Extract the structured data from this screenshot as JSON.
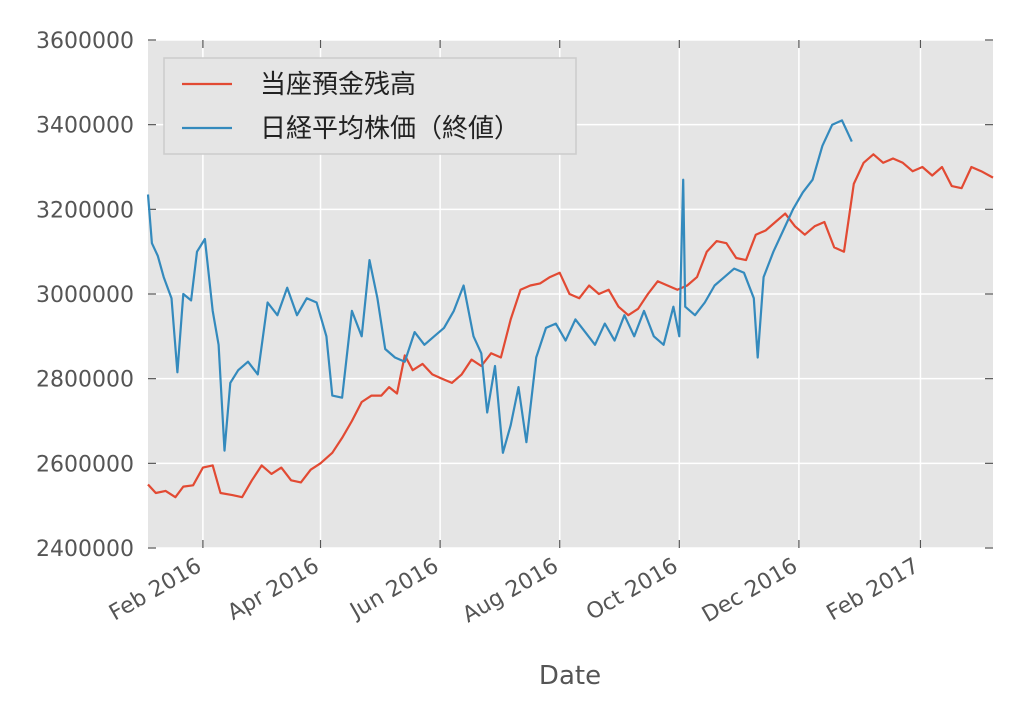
{
  "chart_data": {
    "type": "line",
    "xlabel": "Date",
    "ylabel": "",
    "ylim": [
      2400000,
      3600000
    ],
    "xlim": [
      "2016-01-04",
      "2017-03-10"
    ],
    "yticks": [
      {
        "value": 2400000,
        "label": "2400000"
      },
      {
        "value": 2600000,
        "label": "2600000"
      },
      {
        "value": 2800000,
        "label": "2800000"
      },
      {
        "value": 3000000,
        "label": "3000000"
      },
      {
        "value": 3200000,
        "label": "3200000"
      },
      {
        "value": 3400000,
        "label": "3400000"
      },
      {
        "value": 3600000,
        "label": "3600000"
      }
    ],
    "xticks": [
      {
        "date": "2016-02-01",
        "label": "Feb 2016"
      },
      {
        "date": "2016-04-01",
        "label": "Apr 2016"
      },
      {
        "date": "2016-06-01",
        "label": "Jun 2016"
      },
      {
        "date": "2016-08-01",
        "label": "Aug 2016"
      },
      {
        "date": "2016-10-01",
        "label": "Oct 2016"
      },
      {
        "date": "2016-12-01",
        "label": "Dec 2016"
      },
      {
        "date": "2017-02-01",
        "label": "Feb 2017"
      }
    ],
    "grid": true,
    "legend_position": "top-left",
    "series": [
      {
        "name": "当座預金残高",
        "color": "#e24a33",
        "points": [
          [
            "2016-01-04",
            2550000
          ],
          [
            "2016-01-08",
            2530000
          ],
          [
            "2016-01-13",
            2535000
          ],
          [
            "2016-01-18",
            2520000
          ],
          [
            "2016-01-22",
            2545000
          ],
          [
            "2016-01-27",
            2548000
          ],
          [
            "2016-02-01",
            2590000
          ],
          [
            "2016-02-06",
            2595000
          ],
          [
            "2016-02-10",
            2530000
          ],
          [
            "2016-02-16",
            2525000
          ],
          [
            "2016-02-21",
            2520000
          ],
          [
            "2016-02-26",
            2560000
          ],
          [
            "2016-03-02",
            2595000
          ],
          [
            "2016-03-07",
            2575000
          ],
          [
            "2016-03-12",
            2590000
          ],
          [
            "2016-03-17",
            2560000
          ],
          [
            "2016-03-22",
            2555000
          ],
          [
            "2016-03-27",
            2585000
          ],
          [
            "2016-04-01",
            2600000
          ],
          [
            "2016-04-07",
            2625000
          ],
          [
            "2016-04-12",
            2660000
          ],
          [
            "2016-04-17",
            2700000
          ],
          [
            "2016-04-22",
            2745000
          ],
          [
            "2016-04-27",
            2760000
          ],
          [
            "2016-05-02",
            2760000
          ],
          [
            "2016-05-06",
            2780000
          ],
          [
            "2016-05-10",
            2765000
          ],
          [
            "2016-05-14",
            2855000
          ],
          [
            "2016-05-18",
            2820000
          ],
          [
            "2016-05-23",
            2835000
          ],
          [
            "2016-05-28",
            2810000
          ],
          [
            "2016-06-02",
            2800000
          ],
          [
            "2016-06-07",
            2790000
          ],
          [
            "2016-06-12",
            2810000
          ],
          [
            "2016-06-17",
            2845000
          ],
          [
            "2016-06-22",
            2830000
          ],
          [
            "2016-06-27",
            2860000
          ],
          [
            "2016-07-02",
            2850000
          ],
          [
            "2016-07-07",
            2940000
          ],
          [
            "2016-07-12",
            3010000
          ],
          [
            "2016-07-17",
            3020000
          ],
          [
            "2016-07-22",
            3025000
          ],
          [
            "2016-07-27",
            3040000
          ],
          [
            "2016-08-01",
            3050000
          ],
          [
            "2016-08-06",
            3000000
          ],
          [
            "2016-08-11",
            2990000
          ],
          [
            "2016-08-16",
            3020000
          ],
          [
            "2016-08-21",
            3000000
          ],
          [
            "2016-08-26",
            3010000
          ],
          [
            "2016-08-31",
            2970000
          ],
          [
            "2016-09-05",
            2950000
          ],
          [
            "2016-09-10",
            2965000
          ],
          [
            "2016-09-15",
            3000000
          ],
          [
            "2016-09-20",
            3030000
          ],
          [
            "2016-09-25",
            3020000
          ],
          [
            "2016-09-30",
            3010000
          ],
          [
            "2016-10-05",
            3020000
          ],
          [
            "2016-10-10",
            3040000
          ],
          [
            "2016-10-15",
            3100000
          ],
          [
            "2016-10-20",
            3125000
          ],
          [
            "2016-10-25",
            3120000
          ],
          [
            "2016-10-30",
            3085000
          ],
          [
            "2016-11-04",
            3080000
          ],
          [
            "2016-11-09",
            3140000
          ],
          [
            "2016-11-14",
            3150000
          ],
          [
            "2016-11-19",
            3170000
          ],
          [
            "2016-11-24",
            3190000
          ],
          [
            "2016-11-29",
            3160000
          ],
          [
            "2016-12-04",
            3140000
          ],
          [
            "2016-12-09",
            3160000
          ],
          [
            "2016-12-14",
            3170000
          ],
          [
            "2016-12-19",
            3110000
          ],
          [
            "2016-12-24",
            3100000
          ],
          [
            "2016-12-29",
            3260000
          ],
          [
            "2017-01-03",
            3310000
          ],
          [
            "2017-01-08",
            3330000
          ],
          [
            "2017-01-13",
            3310000
          ],
          [
            "2017-01-18",
            3320000
          ],
          [
            "2017-01-23",
            3310000
          ],
          [
            "2017-01-28",
            3290000
          ],
          [
            "2017-02-02",
            3300000
          ],
          [
            "2017-02-07",
            3280000
          ],
          [
            "2017-02-12",
            3300000
          ],
          [
            "2017-02-17",
            3255000
          ],
          [
            "2017-02-22",
            3250000
          ],
          [
            "2017-02-27",
            3300000
          ],
          [
            "2017-03-04",
            3290000
          ],
          [
            "2017-03-10",
            3275000
          ]
        ]
      },
      {
        "name": "日経平均株価（終値）",
        "color": "#348abd",
        "points": [
          [
            "2016-01-04",
            3235000
          ],
          [
            "2016-01-06",
            3120000
          ],
          [
            "2016-01-09",
            3090000
          ],
          [
            "2016-01-12",
            3040000
          ],
          [
            "2016-01-16",
            2990000
          ],
          [
            "2016-01-19",
            2815000
          ],
          [
            "2016-01-22",
            3000000
          ],
          [
            "2016-01-26",
            2985000
          ],
          [
            "2016-01-29",
            3100000
          ],
          [
            "2016-02-02",
            3130000
          ],
          [
            "2016-02-06",
            2960000
          ],
          [
            "2016-02-09",
            2880000
          ],
          [
            "2016-02-12",
            2630000
          ],
          [
            "2016-02-15",
            2790000
          ],
          [
            "2016-02-19",
            2820000
          ],
          [
            "2016-02-24",
            2840000
          ],
          [
            "2016-02-29",
            2810000
          ],
          [
            "2016-03-05",
            2980000
          ],
          [
            "2016-03-10",
            2950000
          ],
          [
            "2016-03-15",
            3015000
          ],
          [
            "2016-03-20",
            2950000
          ],
          [
            "2016-03-25",
            2990000
          ],
          [
            "2016-03-30",
            2980000
          ],
          [
            "2016-04-04",
            2900000
          ],
          [
            "2016-04-07",
            2760000
          ],
          [
            "2016-04-12",
            2755000
          ],
          [
            "2016-04-17",
            2960000
          ],
          [
            "2016-04-22",
            2900000
          ],
          [
            "2016-04-26",
            3080000
          ],
          [
            "2016-04-30",
            2990000
          ],
          [
            "2016-05-04",
            2870000
          ],
          [
            "2016-05-09",
            2850000
          ],
          [
            "2016-05-14",
            2840000
          ],
          [
            "2016-05-19",
            2910000
          ],
          [
            "2016-05-24",
            2880000
          ],
          [
            "2016-05-29",
            2900000
          ],
          [
            "2016-06-03",
            2920000
          ],
          [
            "2016-06-08",
            2960000
          ],
          [
            "2016-06-13",
            3020000
          ],
          [
            "2016-06-18",
            2900000
          ],
          [
            "2016-06-22",
            2860000
          ],
          [
            "2016-06-25",
            2720000
          ],
          [
            "2016-06-29",
            2830000
          ],
          [
            "2016-07-03",
            2625000
          ],
          [
            "2016-07-07",
            2690000
          ],
          [
            "2016-07-11",
            2780000
          ],
          [
            "2016-07-15",
            2650000
          ],
          [
            "2016-07-20",
            2850000
          ],
          [
            "2016-07-25",
            2920000
          ],
          [
            "2016-07-30",
            2930000
          ],
          [
            "2016-08-04",
            2890000
          ],
          [
            "2016-08-09",
            2940000
          ],
          [
            "2016-08-14",
            2910000
          ],
          [
            "2016-08-19",
            2880000
          ],
          [
            "2016-08-24",
            2930000
          ],
          [
            "2016-08-29",
            2890000
          ],
          [
            "2016-09-03",
            2950000
          ],
          [
            "2016-09-08",
            2900000
          ],
          [
            "2016-09-13",
            2960000
          ],
          [
            "2016-09-18",
            2900000
          ],
          [
            "2016-09-23",
            2880000
          ],
          [
            "2016-09-28",
            2970000
          ],
          [
            "2016-10-01",
            2900000
          ],
          [
            "2016-10-03",
            3270000
          ],
          [
            "2016-10-04",
            2970000
          ],
          [
            "2016-10-09",
            2950000
          ],
          [
            "2016-10-14",
            2980000
          ],
          [
            "2016-10-19",
            3020000
          ],
          [
            "2016-10-24",
            3040000
          ],
          [
            "2016-10-29",
            3060000
          ],
          [
            "2016-11-03",
            3050000
          ],
          [
            "2016-11-08",
            2990000
          ],
          [
            "2016-11-10",
            2850000
          ],
          [
            "2016-11-13",
            3040000
          ],
          [
            "2016-11-18",
            3100000
          ],
          [
            "2016-11-23",
            3150000
          ],
          [
            "2016-11-28",
            3200000
          ],
          [
            "2016-12-03",
            3240000
          ],
          [
            "2016-12-08",
            3270000
          ],
          [
            "2016-12-13",
            3350000
          ],
          [
            "2016-12-18",
            3400000
          ],
          [
            "2016-12-23",
            3410000
          ],
          [
            "2016-12-28",
            3360000
          ]
        ]
      }
    ]
  }
}
